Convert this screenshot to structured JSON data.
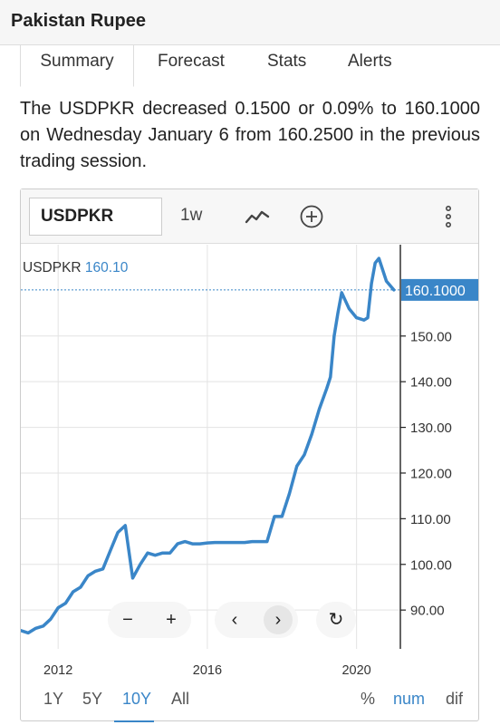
{
  "header": {
    "title": "Pakistan Rupee"
  },
  "tabs": [
    {
      "label": "Summary"
    },
    {
      "label": "Forecast"
    },
    {
      "label": "Stats"
    },
    {
      "label": "Alerts"
    }
  ],
  "summary": "The USDPKR decreased 0.1500 or 0.09% to 160.1000 on Wednesday January 6 from 160.2500 in the previous trading session.",
  "toolbar": {
    "symbol": "USDPKR",
    "interval": "1w",
    "icons": {
      "chart_type": "line-chart-icon",
      "add": "plus-circle-icon",
      "menu": "vertical-dots-icon"
    }
  },
  "legend": {
    "symbol": "USDPKR",
    "value": "160.10"
  },
  "last_price_label": "160.1000",
  "nav": {
    "zoom_out": "−",
    "zoom_in": "+",
    "back": "‹",
    "forward": "›",
    "reset": "↻"
  },
  "ranges": [
    {
      "label": "1Y",
      "active": false
    },
    {
      "label": "5Y",
      "active": false
    },
    {
      "label": "10Y",
      "active": true
    },
    {
      "label": "All",
      "active": false
    }
  ],
  "scales": [
    {
      "label": "%",
      "active": false
    },
    {
      "label": "num",
      "active": true
    },
    {
      "label": "dif",
      "active": false
    }
  ],
  "colors": {
    "line": "#3a86c8",
    "accent": "#3a86c8"
  },
  "chart_data": {
    "type": "line",
    "title": "",
    "series": [
      {
        "name": "USDPKR",
        "x": [
          2011.0,
          2011.2,
          2011.4,
          2011.6,
          2011.8,
          2012.0,
          2012.2,
          2012.4,
          2012.6,
          2012.8,
          2013.0,
          2013.2,
          2013.4,
          2013.6,
          2013.8,
          2014.0,
          2014.2,
          2014.4,
          2014.6,
          2014.8,
          2015.0,
          2015.2,
          2015.4,
          2015.6,
          2015.8,
          2016.0,
          2016.2,
          2016.4,
          2016.6,
          2016.8,
          2017.0,
          2017.2,
          2017.4,
          2017.6,
          2017.8,
          2018.0,
          2018.2,
          2018.4,
          2018.6,
          2018.8,
          2019.0,
          2019.2,
          2019.3,
          2019.4,
          2019.5,
          2019.6,
          2019.8,
          2020.0,
          2020.2,
          2020.3,
          2020.4,
          2020.5,
          2020.6,
          2020.8,
          2021.0
        ],
        "values": [
          85.5,
          85.0,
          86.0,
          86.5,
          88.0,
          90.5,
          91.5,
          94.0,
          95.0,
          97.5,
          98.5,
          99.0,
          103.0,
          107.0,
          108.5,
          97.0,
          100.0,
          102.5,
          102.0,
          102.5,
          102.5,
          104.5,
          105.0,
          104.5,
          104.5,
          104.7,
          104.8,
          104.8,
          104.8,
          104.8,
          104.8,
          105.0,
          105.0,
          105.0,
          110.5,
          110.5,
          115.5,
          121.5,
          124.0,
          128.5,
          134.0,
          138.5,
          141.0,
          150.0,
          155.0,
          159.5,
          156.0,
          154.0,
          153.5,
          154.0,
          161.5,
          166.0,
          167.0,
          162.0,
          160.1
        ]
      }
    ],
    "xticks": [
      "2012",
      "2016",
      "2020"
    ],
    "xtick_values": [
      2012,
      2016,
      2020
    ],
    "yticks": [
      90,
      100,
      110,
      120,
      130,
      140,
      150
    ],
    "ylim": [
      81.5,
      170
    ],
    "xlim": [
      2011.0,
      2021.15
    ],
    "grid": true,
    "last_value": 160.1
  }
}
